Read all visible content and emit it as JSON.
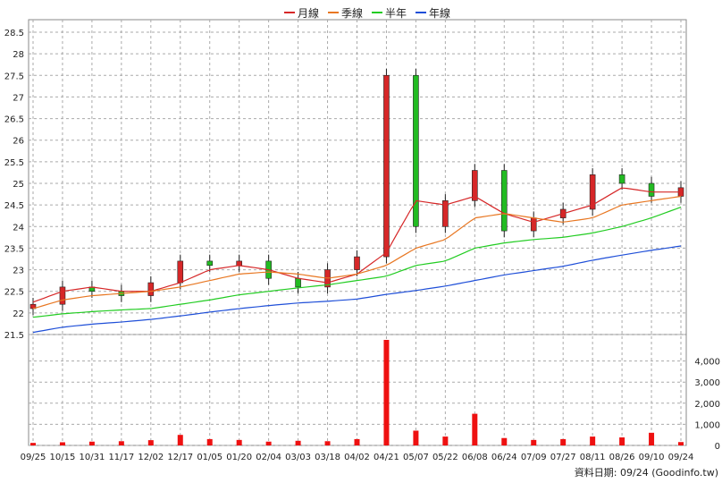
{
  "legend": [
    {
      "label": "月線",
      "color": "#d62728"
    },
    {
      "label": "季線",
      "color": "#e87722"
    },
    {
      "label": "半年",
      "color": "#22cc22"
    },
    {
      "label": "年線",
      "color": "#1f4fd8"
    }
  ],
  "footer": "資料日期: 09/24 (Goodinfo.tw)",
  "chart_data": [
    {
      "type": "candlestick",
      "title": "",
      "xlabel": "",
      "ylabel": "",
      "ylim": [
        21.5,
        28.5
      ],
      "y_ticks": [
        "21.5",
        "22",
        "22.5",
        "23",
        "23.5",
        "24",
        "24.5",
        "25",
        "25.5",
        "26",
        "26.5",
        "27",
        "27.5",
        "28",
        "28.5"
      ],
      "x_ticks": [
        "09/25",
        "10/15",
        "10/31",
        "11/17",
        "12/02",
        "12/17",
        "01/05",
        "01/20",
        "02/04",
        "03/03",
        "03/18",
        "04/02",
        "04/21",
        "05/07",
        "05/22",
        "06/08",
        "06/24",
        "07/09",
        "07/27",
        "08/11",
        "08/26",
        "09/10",
        "09/24"
      ],
      "grid": true,
      "up_color": "#d62728",
      "down_color": "#22bb22",
      "ohlc_keypoints": [
        {
          "x": "09/25",
          "close": 22.2
        },
        {
          "x": "10/15",
          "close": 22.6
        },
        {
          "x": "10/31",
          "close": 22.5
        },
        {
          "x": "11/17",
          "close": 22.4
        },
        {
          "x": "12/02",
          "close": 22.7
        },
        {
          "x": "12/17",
          "close": 23.2
        },
        {
          "x": "01/05",
          "close": 23.1
        },
        {
          "x": "01/20",
          "close": 23.2
        },
        {
          "x": "02/04",
          "close": 22.8
        },
        {
          "x": "03/03",
          "close": 22.6
        },
        {
          "x": "03/18",
          "close": 23.0
        },
        {
          "x": "04/02",
          "close": 23.3
        },
        {
          "x": "04/21",
          "close": 27.5
        },
        {
          "x": "05/07",
          "close": 24.0
        },
        {
          "x": "05/22",
          "close": 24.6
        },
        {
          "x": "06/08",
          "close": 25.3
        },
        {
          "x": "06/24",
          "close": 23.9
        },
        {
          "x": "07/09",
          "close": 24.2
        },
        {
          "x": "07/27",
          "close": 24.4
        },
        {
          "x": "08/11",
          "close": 25.2
        },
        {
          "x": "08/26",
          "close": 25.0
        },
        {
          "x": "09/10",
          "close": 24.7
        },
        {
          "x": "09/24",
          "close": 24.9
        }
      ],
      "series": [
        {
          "name": "月線",
          "color": "#d62728",
          "values": [
            22.25,
            22.5,
            22.6,
            22.5,
            22.5,
            22.7,
            23.0,
            23.1,
            23.0,
            22.8,
            22.7,
            22.9,
            23.4,
            24.6,
            24.5,
            24.7,
            24.3,
            24.1,
            24.3,
            24.5,
            24.9,
            24.8,
            24.8
          ]
        },
        {
          "name": "季線",
          "color": "#e87722",
          "values": [
            22.1,
            22.3,
            22.4,
            22.45,
            22.5,
            22.6,
            22.75,
            22.9,
            22.95,
            22.9,
            22.8,
            22.9,
            23.1,
            23.5,
            23.7,
            24.2,
            24.3,
            24.2,
            24.1,
            24.2,
            24.5,
            24.6,
            24.7
          ]
        },
        {
          "name": "半年",
          "color": "#22cc22",
          "values": [
            21.9,
            21.98,
            22.03,
            22.07,
            22.1,
            22.2,
            22.3,
            22.42,
            22.5,
            22.58,
            22.65,
            22.75,
            22.85,
            23.1,
            23.2,
            23.5,
            23.62,
            23.7,
            23.75,
            23.85,
            24.0,
            24.2,
            24.45
          ]
        },
        {
          "name": "年線",
          "color": "#1f4fd8",
          "values": [
            21.55,
            21.67,
            21.74,
            21.79,
            21.85,
            21.93,
            22.02,
            22.1,
            22.17,
            22.23,
            22.27,
            22.32,
            22.43,
            22.52,
            22.62,
            22.75,
            22.88,
            22.98,
            23.08,
            23.22,
            23.34,
            23.45,
            23.55
          ]
        }
      ]
    },
    {
      "type": "bar",
      "title": "",
      "ylabel": "",
      "ylim": [
        0,
        5000
      ],
      "y_ticks": [
        "0",
        "1,000",
        "2,000",
        "3,000",
        "4,000"
      ],
      "color": "#ee1111",
      "x_ticks": [
        "09/25",
        "10/15",
        "10/31",
        "11/17",
        "12/02",
        "12/17",
        "01/05",
        "01/20",
        "02/04",
        "03/03",
        "03/18",
        "04/02",
        "04/21",
        "05/07",
        "05/22",
        "06/08",
        "06/24",
        "07/09",
        "07/27",
        "08/11",
        "08/26",
        "09/10",
        "09/24"
      ],
      "values": [
        120,
        150,
        180,
        200,
        250,
        500,
        300,
        260,
        180,
        220,
        200,
        300,
        5000,
        700,
        420,
        1500,
        350,
        260,
        300,
        420,
        380,
        600,
        160
      ]
    }
  ]
}
